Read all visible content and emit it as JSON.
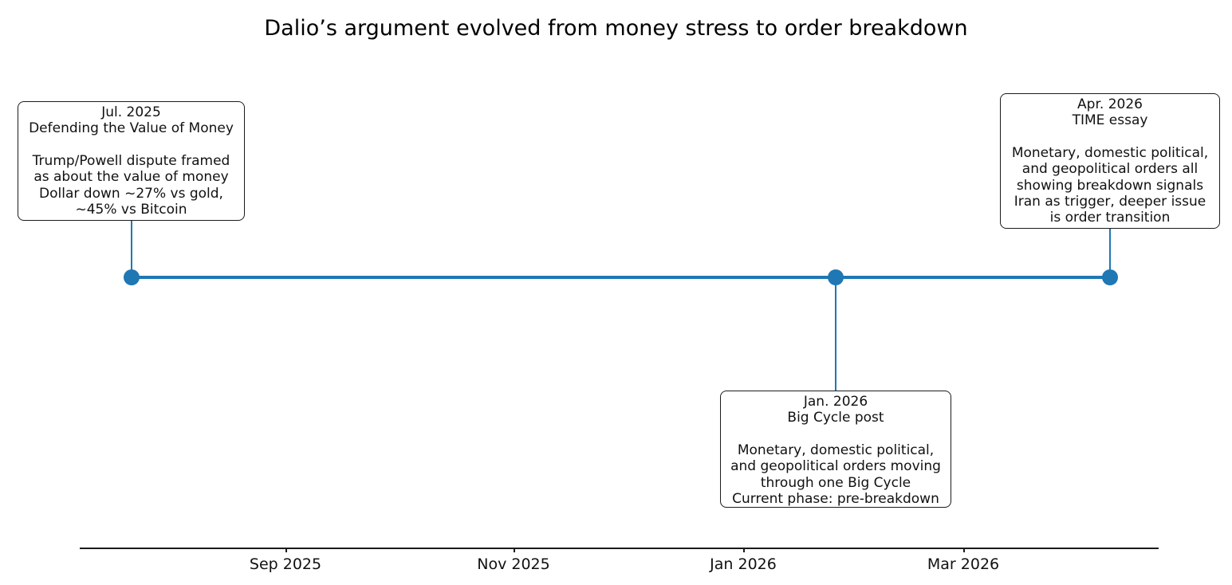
{
  "page": {
    "background_color": "#ffffff",
    "text_color": "#111111"
  },
  "chart_data": {
    "type": "timeline",
    "title": "Dalio’s argument evolved from money stress to order breakdown",
    "marker_color": "#1f77b4",
    "line_color": "#1f77b4",
    "legend": "none",
    "grid": false,
    "axis": {
      "orientation": "horizontal-bottom",
      "tick_labels": [
        "Sep 2025",
        "Nov 2025",
        "Jan 2026",
        "Mar 2026"
      ],
      "range_note": "timeline spans approx mid-Jul 2025 to mid-Apr 2026"
    },
    "events": [
      {
        "date": "Jul. 2025",
        "headline": "Defending the Value of Money",
        "body": "Trump/Powell dispute framed\nas about the value of money\nDollar down ~27% vs gold,\n~45% vs Bitcoin",
        "box_position": "above-line",
        "approx_date_value": "2025-07-15"
      },
      {
        "date": "Jan. 2026",
        "headline": "Big Cycle post",
        "body": "Monetary, domestic political,\nand geopolitical orders moving\nthrough one Big Cycle\nCurrent phase: pre-breakdown",
        "box_position": "below-line",
        "approx_date_value": "2026-01-25"
      },
      {
        "date": "Apr. 2026",
        "headline": "TIME essay",
        "body": "Monetary, domestic political,\nand geopolitical orders all\nshowing breakdown signals\nIran as trigger, deeper issue\nis order transition",
        "box_position": "above-line",
        "approx_date_value": "2026-04-10"
      }
    ]
  }
}
